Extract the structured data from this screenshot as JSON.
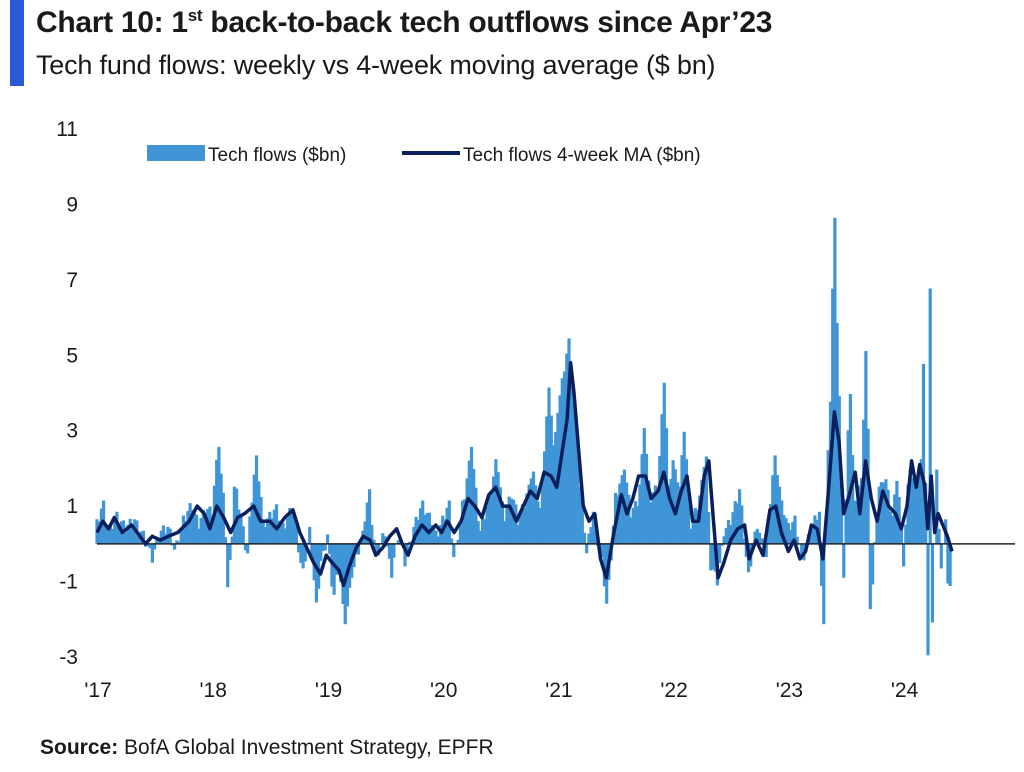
{
  "header": {
    "title_pre": "Chart 10: 1",
    "title_sup": "st",
    "title_post": " back-to-back tech outflows since Apr’23",
    "subtitle": "Tech fund flows: weekly vs 4-week moving average ($ bn)"
  },
  "source": {
    "label": "Source:",
    "text": " BofA Global Investment Strategy, EPFR"
  },
  "colors": {
    "accent": "#2a59d6",
    "bars": "#3f95d6",
    "ma_line": "#0b1f5c",
    "zero_line": "#222222"
  },
  "chart_data": {
    "type": "bar",
    "title": "Tech fund flows: weekly vs 4-week moving average ($ bn)",
    "xlabel": "",
    "ylabel": "",
    "ylim": [
      -3,
      11
    ],
    "y_ticks": [
      "11",
      "9",
      "7",
      "5",
      "3",
      "1",
      "-1",
      "-3"
    ],
    "y_tick_values": [
      11,
      9,
      7,
      5,
      3,
      1,
      -1,
      -3
    ],
    "x_ticks": [
      "'17",
      "'18",
      "'19",
      "'20",
      "'21",
      "'22",
      "'23",
      "'24"
    ],
    "x_tick_years": [
      2017,
      2018,
      2019,
      2020,
      2021,
      2022,
      2023,
      2024
    ],
    "x_range_years": [
      2017,
      2024.75
    ],
    "grid": false,
    "legend_position": "top-center",
    "series": [
      {
        "name": "Tech flows ($bn)",
        "kind": "bar",
        "anchors": [
          [
            2017.0,
            0.5
          ],
          [
            2017.05,
            1.0
          ],
          [
            2017.1,
            0.3
          ],
          [
            2017.17,
            0.7
          ],
          [
            2017.25,
            0.4
          ],
          [
            2017.32,
            0.6
          ],
          [
            2017.4,
            0.2
          ],
          [
            2017.48,
            -0.4
          ],
          [
            2017.55,
            0.3
          ],
          [
            2017.62,
            0.4
          ],
          [
            2017.68,
            -0.2
          ],
          [
            2017.75,
            0.6
          ],
          [
            2017.82,
            1.0
          ],
          [
            2017.88,
            0.5
          ],
          [
            2017.95,
            0.9
          ],
          [
            2018.0,
            0.8
          ],
          [
            2018.05,
            2.6
          ],
          [
            2018.1,
            1.2
          ],
          [
            2018.14,
            -1.2
          ],
          [
            2018.2,
            1.5
          ],
          [
            2018.25,
            0.7
          ],
          [
            2018.3,
            -0.3
          ],
          [
            2018.38,
            2.3
          ],
          [
            2018.45,
            0.5
          ],
          [
            2018.55,
            0.9
          ],
          [
            2018.62,
            0.4
          ],
          [
            2018.7,
            1.0
          ],
          [
            2018.78,
            -0.8
          ],
          [
            2018.85,
            0.3
          ],
          [
            2018.9,
            -1.6
          ],
          [
            2018.95,
            -0.5
          ],
          [
            2019.0,
            0.2
          ],
          [
            2019.05,
            -1.4
          ],
          [
            2019.1,
            -0.6
          ],
          [
            2019.15,
            -2.1
          ],
          [
            2019.22,
            -0.8
          ],
          [
            2019.3,
            0.2
          ],
          [
            2019.36,
            1.3
          ],
          [
            2019.42,
            -0.4
          ],
          [
            2019.5,
            0.3
          ],
          [
            2019.55,
            -0.8
          ],
          [
            2019.62,
            0.2
          ],
          [
            2019.68,
            -0.5
          ],
          [
            2019.75,
            0.4
          ],
          [
            2019.82,
            1.0
          ],
          [
            2019.9,
            0.6
          ],
          [
            2019.95,
            0.2
          ],
          [
            2020.0,
            0.6
          ],
          [
            2020.05,
            1.0
          ],
          [
            2020.1,
            -0.4
          ],
          [
            2020.18,
            1.0
          ],
          [
            2020.25,
            2.6
          ],
          [
            2020.32,
            0.3
          ],
          [
            2020.4,
            1.1
          ],
          [
            2020.47,
            2.2
          ],
          [
            2020.53,
            0.7
          ],
          [
            2020.6,
            1.3
          ],
          [
            2020.66,
            0.6
          ],
          [
            2020.7,
            0.9
          ],
          [
            2020.78,
            1.9
          ],
          [
            2020.85,
            0.9
          ],
          [
            2020.92,
            4.1
          ],
          [
            2020.97,
            2.6
          ],
          [
            2021.0,
            3.5
          ],
          [
            2021.05,
            4.6
          ],
          [
            2021.1,
            5.4
          ],
          [
            2021.15,
            3.1
          ],
          [
            2021.2,
            1.5
          ],
          [
            2021.25,
            -0.3
          ],
          [
            2021.3,
            0.8
          ],
          [
            2021.38,
            -0.5
          ],
          [
            2021.43,
            -1.6
          ],
          [
            2021.5,
            1.2
          ],
          [
            2021.58,
            2.0
          ],
          [
            2021.63,
            0.8
          ],
          [
            2021.7,
            1.1
          ],
          [
            2021.75,
            3.1
          ],
          [
            2021.8,
            1.2
          ],
          [
            2021.87,
            1.5
          ],
          [
            2021.92,
            4.3
          ],
          [
            2021.97,
            1.5
          ],
          [
            2022.0,
            2.2
          ],
          [
            2022.05,
            1.5
          ],
          [
            2022.1,
            3.0
          ],
          [
            2022.15,
            0.5
          ],
          [
            2022.22,
            1.0
          ],
          [
            2022.28,
            2.3
          ],
          [
            2022.33,
            -0.6
          ],
          [
            2022.38,
            -1.0
          ],
          [
            2022.45,
            0.3
          ],
          [
            2022.5,
            0.6
          ],
          [
            2022.58,
            1.4
          ],
          [
            2022.65,
            -0.9
          ],
          [
            2022.73,
            0.5
          ],
          [
            2022.8,
            -0.4
          ],
          [
            2022.88,
            2.3
          ],
          [
            2022.95,
            1.0
          ],
          [
            2023.0,
            0.4
          ],
          [
            2023.06,
            0.6
          ],
          [
            2023.12,
            -0.5
          ],
          [
            2023.2,
            0.4
          ],
          [
            2023.26,
            0.8
          ],
          [
            2023.3,
            -2.1
          ],
          [
            2023.36,
            3.8
          ],
          [
            2023.4,
            8.6
          ],
          [
            2023.44,
            3.9
          ],
          [
            2023.48,
            -0.8
          ],
          [
            2023.53,
            4.0
          ],
          [
            2023.58,
            1.0
          ],
          [
            2023.63,
            1.7
          ],
          [
            2023.68,
            5.1
          ],
          [
            2023.72,
            -1.7
          ],
          [
            2023.78,
            1.5
          ],
          [
            2023.84,
            1.7
          ],
          [
            2023.9,
            0.7
          ],
          [
            2023.95,
            1.7
          ],
          [
            2024.0,
            -0.5
          ],
          [
            2024.05,
            2.0
          ],
          [
            2024.1,
            1.5
          ],
          [
            2024.15,
            2.2
          ],
          [
            2024.18,
            4.8
          ],
          [
            2024.21,
            -3.0
          ],
          [
            2024.23,
            6.8
          ],
          [
            2024.25,
            -2.1
          ],
          [
            2024.29,
            2.0
          ],
          [
            2024.32,
            -0.8
          ],
          [
            2024.36,
            0.6
          ],
          [
            2024.39,
            -1.2
          ],
          [
            2024.42,
            -0.8
          ]
        ]
      },
      {
        "name": "Tech flows 4-week MA ($bn)",
        "kind": "line",
        "points": [
          [
            2017.0,
            0.3
          ],
          [
            2017.05,
            0.6
          ],
          [
            2017.1,
            0.4
          ],
          [
            2017.15,
            0.7
          ],
          [
            2017.22,
            0.3
          ],
          [
            2017.3,
            0.5
          ],
          [
            2017.35,
            0.3
          ],
          [
            2017.42,
            0.0
          ],
          [
            2017.48,
            0.2
          ],
          [
            2017.55,
            0.1
          ],
          [
            2017.62,
            0.2
          ],
          [
            2017.7,
            0.3
          ],
          [
            2017.8,
            0.6
          ],
          [
            2017.87,
            1.0
          ],
          [
            2017.93,
            0.8
          ],
          [
            2017.98,
            0.4
          ],
          [
            2018.04,
            1.0
          ],
          [
            2018.1,
            0.7
          ],
          [
            2018.16,
            0.3
          ],
          [
            2018.22,
            0.7
          ],
          [
            2018.28,
            0.8
          ],
          [
            2018.36,
            1.0
          ],
          [
            2018.42,
            0.6
          ],
          [
            2018.5,
            0.6
          ],
          [
            2018.56,
            0.4
          ],
          [
            2018.63,
            0.7
          ],
          [
            2018.7,
            0.9
          ],
          [
            2018.76,
            0.3
          ],
          [
            2018.82,
            -0.1
          ],
          [
            2018.88,
            -0.5
          ],
          [
            2018.94,
            -0.8
          ],
          [
            2018.99,
            -0.3
          ],
          [
            2019.04,
            -0.5
          ],
          [
            2019.1,
            -0.7
          ],
          [
            2019.14,
            -1.1
          ],
          [
            2019.19,
            -0.6
          ],
          [
            2019.25,
            -0.1
          ],
          [
            2019.31,
            0.2
          ],
          [
            2019.37,
            0.1
          ],
          [
            2019.42,
            -0.3
          ],
          [
            2019.48,
            -0.1
          ],
          [
            2019.54,
            0.2
          ],
          [
            2019.6,
            0.4
          ],
          [
            2019.65,
            0.0
          ],
          [
            2019.7,
            -0.3
          ],
          [
            2019.76,
            0.2
          ],
          [
            2019.82,
            0.5
          ],
          [
            2019.88,
            0.3
          ],
          [
            2019.94,
            0.5
          ],
          [
            2019.99,
            0.3
          ],
          [
            2020.04,
            0.6
          ],
          [
            2020.1,
            0.3
          ],
          [
            2020.16,
            0.6
          ],
          [
            2020.22,
            1.2
          ],
          [
            2020.28,
            1.0
          ],
          [
            2020.34,
            0.7
          ],
          [
            2020.4,
            1.3
          ],
          [
            2020.46,
            1.5
          ],
          [
            2020.52,
            1.0
          ],
          [
            2020.58,
            1.0
          ],
          [
            2020.64,
            0.6
          ],
          [
            2020.7,
            1.0
          ],
          [
            2020.76,
            1.4
          ],
          [
            2020.82,
            1.2
          ],
          [
            2020.88,
            1.9
          ],
          [
            2020.94,
            1.8
          ],
          [
            2020.99,
            1.5
          ],
          [
            2021.04,
            2.5
          ],
          [
            2021.08,
            3.3
          ],
          [
            2021.11,
            4.8
          ],
          [
            2021.14,
            4.0
          ],
          [
            2021.18,
            2.5
          ],
          [
            2021.22,
            1.0
          ],
          [
            2021.27,
            0.6
          ],
          [
            2021.32,
            0.8
          ],
          [
            2021.37,
            -0.4
          ],
          [
            2021.42,
            -0.9
          ],
          [
            2021.48,
            0.2
          ],
          [
            2021.55,
            1.3
          ],
          [
            2021.6,
            0.8
          ],
          [
            2021.65,
            1.2
          ],
          [
            2021.7,
            1.8
          ],
          [
            2021.76,
            1.8
          ],
          [
            2021.81,
            1.2
          ],
          [
            2021.87,
            1.4
          ],
          [
            2021.92,
            1.9
          ],
          [
            2021.97,
            1.2
          ],
          [
            2022.02,
            0.8
          ],
          [
            2022.07,
            1.4
          ],
          [
            2022.12,
            1.8
          ],
          [
            2022.17,
            0.6
          ],
          [
            2022.22,
            0.6
          ],
          [
            2022.27,
            1.8
          ],
          [
            2022.31,
            2.2
          ],
          [
            2022.35,
            0.6
          ],
          [
            2022.39,
            -0.9
          ],
          [
            2022.44,
            -0.5
          ],
          [
            2022.5,
            0.1
          ],
          [
            2022.56,
            0.4
          ],
          [
            2022.62,
            0.5
          ],
          [
            2022.66,
            -0.4
          ],
          [
            2022.72,
            0.1
          ],
          [
            2022.78,
            -0.3
          ],
          [
            2022.84,
            0.9
          ],
          [
            2022.89,
            1.0
          ],
          [
            2022.94,
            0.3
          ],
          [
            2023.0,
            -0.2
          ],
          [
            2023.05,
            0.1
          ],
          [
            2023.1,
            -0.4
          ],
          [
            2023.15,
            -0.2
          ],
          [
            2023.2,
            0.5
          ],
          [
            2023.25,
            0.4
          ],
          [
            2023.3,
            -0.4
          ],
          [
            2023.35,
            1.5
          ],
          [
            2023.4,
            3.5
          ],
          [
            2023.44,
            2.7
          ],
          [
            2023.48,
            0.8
          ],
          [
            2023.53,
            1.3
          ],
          [
            2023.58,
            1.9
          ],
          [
            2023.62,
            0.8
          ],
          [
            2023.67,
            2.2
          ],
          [
            2023.72,
            1.2
          ],
          [
            2023.77,
            0.6
          ],
          [
            2023.82,
            1.4
          ],
          [
            2023.87,
            1.0
          ],
          [
            2023.93,
            0.8
          ],
          [
            2023.98,
            0.4
          ],
          [
            2024.03,
            1.0
          ],
          [
            2024.07,
            2.2
          ],
          [
            2024.11,
            1.5
          ],
          [
            2024.14,
            2.1
          ],
          [
            2024.18,
            1.6
          ],
          [
            2024.21,
            0.4
          ],
          [
            2024.24,
            1.8
          ],
          [
            2024.27,
            0.3
          ],
          [
            2024.3,
            0.8
          ],
          [
            2024.34,
            0.5
          ],
          [
            2024.38,
            0.2
          ],
          [
            2024.42,
            -0.2
          ]
        ]
      }
    ]
  }
}
